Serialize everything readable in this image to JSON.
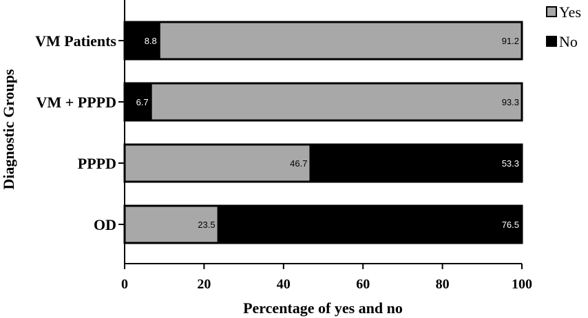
{
  "chart_data": {
    "type": "bar",
    "orientation": "horizontal",
    "stacked": true,
    "categories": [
      "VM Patients",
      "VM + PPPD",
      "PPPD",
      "OD"
    ],
    "series": [
      {
        "name": "Yes",
        "color": "#a8a8a8",
        "values": [
          91.2,
          93.3,
          46.7,
          23.5
        ]
      },
      {
        "name": "No",
        "color": "#000000",
        "values": [
          8.8,
          6.7,
          53.3,
          76.5
        ]
      }
    ],
    "stack_order": [
      [
        "No",
        "Yes"
      ],
      [
        "No",
        "Yes"
      ],
      [
        "Yes",
        "No"
      ],
      [
        "Yes",
        "No"
      ]
    ],
    "xlabel": "Percentage of yes and no",
    "ylabel": "Diagnostic Groups",
    "xlim": [
      0,
      100
    ],
    "xticks": [
      0,
      20,
      40,
      60,
      80,
      100
    ],
    "grid": false,
    "legend": "top-right"
  }
}
